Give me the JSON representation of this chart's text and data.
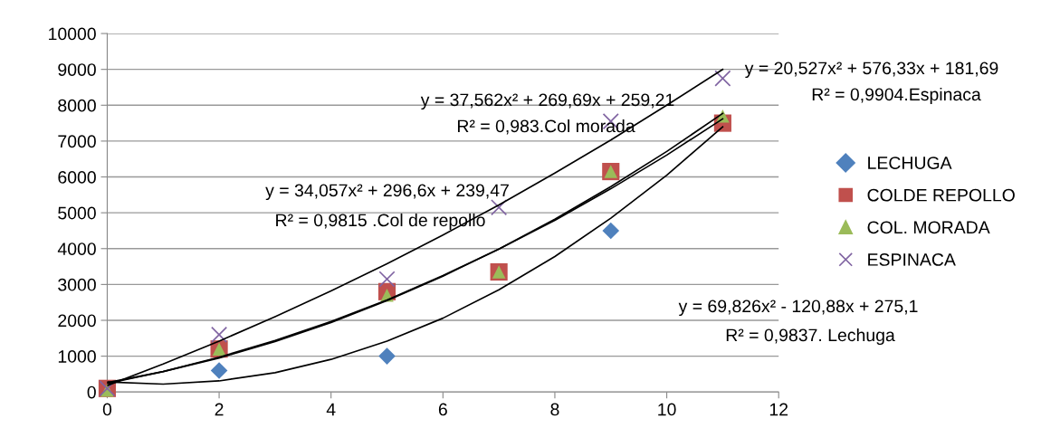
{
  "chart_data": {
    "type": "scatter",
    "x": [
      0,
      2,
      5,
      7,
      9,
      11
    ],
    "series": [
      {
        "name": "LECHUGA",
        "color": "#4f81bd",
        "marker": "diamond",
        "values": [
          null,
          600,
          1000,
          null,
          4500,
          null
        ]
      },
      {
        "name": "COLDE REPOLLO",
        "color": "#c0504d",
        "marker": "square",
        "values": [
          100,
          1200,
          2800,
          3350,
          6150,
          7500
        ]
      },
      {
        "name": "COL. MORADA",
        "color": "#9bbb59",
        "marker": "triangle",
        "values": [
          50,
          1200,
          2700,
          3350,
          6150,
          7700
        ]
      },
      {
        "name": "ESPINACA",
        "color": "#8064a2",
        "marker": "cross",
        "values": [
          100,
          1600,
          3150,
          5150,
          7550,
          8750
        ]
      },
      {
        "type": "line",
        "color": "#000000",
        "marker": "none",
        "x": [
          0,
          1,
          2,
          3,
          4,
          5,
          6,
          7,
          8,
          9,
          10,
          11
        ],
        "values": [
          280,
          220,
          310,
          540,
          910,
          1420,
          2060,
          2850,
          3780,
          4850,
          6050,
          7400
        ]
      },
      {
        "type": "line",
        "color": "#000000",
        "marker": "none",
        "x": [
          0,
          1,
          2,
          3,
          4,
          5,
          6,
          7,
          8,
          9,
          10,
          11
        ],
        "values": [
          240,
          570,
          970,
          1440,
          1970,
          2570,
          3250,
          3990,
          4790,
          5670,
          6610,
          7620
        ]
      },
      {
        "type": "line",
        "color": "#000000",
        "marker": "none",
        "x": [
          0,
          1,
          2,
          3,
          4,
          5,
          6,
          7,
          8,
          9,
          10,
          11
        ],
        "values": [
          260,
          570,
          950,
          1410,
          1940,
          2550,
          3230,
          3990,
          4820,
          5730,
          6710,
          7770
        ]
      },
      {
        "type": "line",
        "color": "#000000",
        "marker": "none",
        "x": [
          0,
          1,
          2,
          3,
          4,
          5,
          6,
          7,
          8,
          9,
          10,
          11
        ],
        "values": [
          180,
          780,
          1420,
          2100,
          2820,
          3580,
          4380,
          5220,
          6110,
          7030,
          8000,
          9000
        ]
      }
    ],
    "xlim": [
      0,
      12
    ],
    "xticks": [
      0,
      2,
      4,
      6,
      8,
      10,
      12
    ],
    "ylim": [
      0,
      10000
    ],
    "yticks": [
      0,
      1000,
      2000,
      3000,
      4000,
      5000,
      6000,
      7000,
      8000,
      9000,
      10000
    ],
    "grid": "y",
    "legend": "right",
    "annotations": [
      "y = 37,562x² + 269,69x + 259,21",
      "R² = 0,983.Col morada",
      "y = 34,057x² + 296,6x + 239,47",
      "R² = 0,9815 .Col de repollo",
      "y = 20,527x² + 576,33x + 181,69",
      "R² = 0,9904.Espinaca",
      "y = 69,826x² - 120,88x + 275,1",
      "R² = 0,9837. Lechuga"
    ]
  }
}
